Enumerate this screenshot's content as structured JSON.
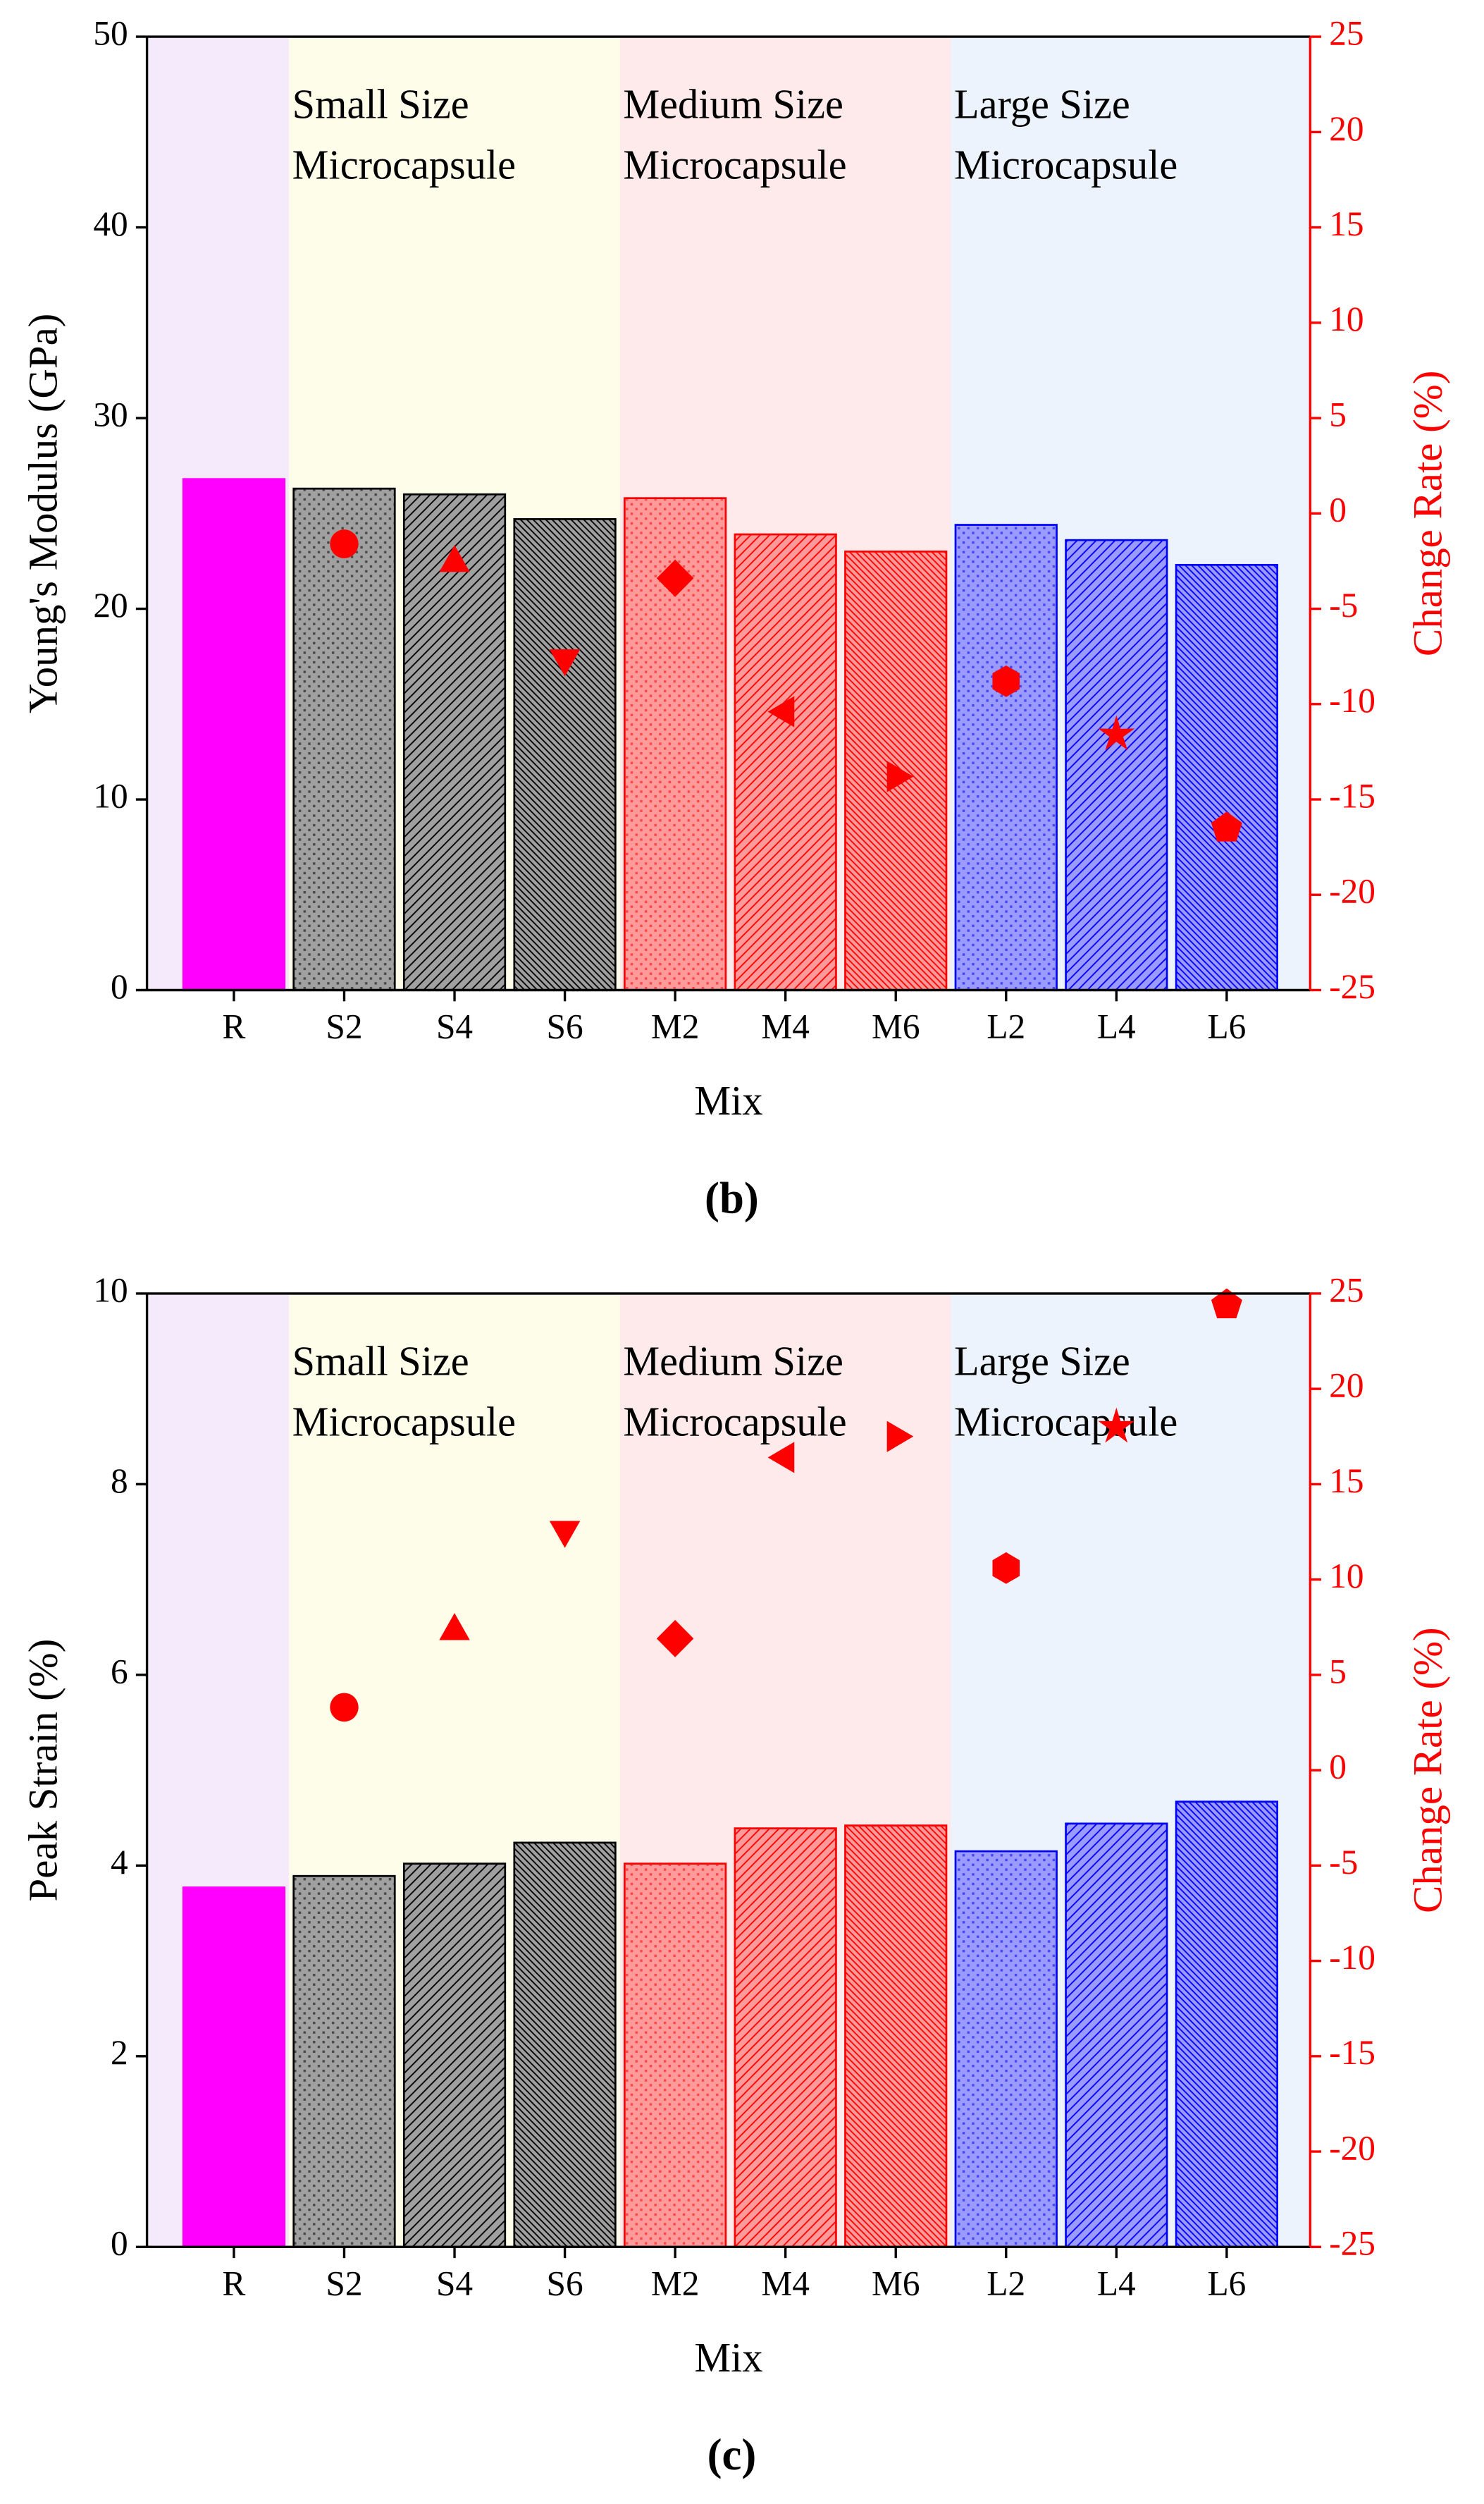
{
  "chart_data": [
    {
      "type": "bar",
      "caption": "(b)",
      "xlabel": "Mix",
      "ylabel": "Young's Modulus (GPa)",
      "y2label": "Change Rate (%)",
      "categories": [
        "R",
        "S2",
        "S4",
        "S6",
        "M2",
        "M4",
        "M6",
        "L2",
        "L4",
        "L6"
      ],
      "ylim": [
        0,
        50
      ],
      "yticks": [
        0,
        10,
        20,
        30,
        40,
        50
      ],
      "y2lim": [
        -25,
        25
      ],
      "y2ticks": [
        -25,
        -20,
        -15,
        -10,
        -5,
        0,
        5,
        10,
        15,
        20,
        25
      ],
      "y2color": "#ff0000",
      "regions": [
        {
          "span": [
            0,
            0
          ],
          "color": "#f5eafb"
        },
        {
          "span": [
            1,
            3
          ],
          "color": "#fefde9",
          "label_lines": [
            "Small Size",
            "Microcapsule"
          ]
        },
        {
          "span": [
            4,
            6
          ],
          "color": "#feeaea",
          "label_lines": [
            "Medium Size",
            "Microcapsule"
          ]
        },
        {
          "span": [
            7,
            9
          ],
          "color": "#ecf3fd",
          "label_lines": [
            "Large Size",
            "Microcapsule"
          ]
        }
      ],
      "series": [
        {
          "type": "bar",
          "values": [
            26.8,
            26.3,
            26.0,
            24.7,
            25.8,
            23.9,
            23.0,
            24.4,
            23.6,
            22.3
          ],
          "colors": [
            "#ff00ff",
            "#a0a0a0",
            "#a0a0a0",
            "#a0a0a0",
            "#ff9a9a",
            "#ff9a9a",
            "#ff9a9a",
            "#9a9aff",
            "#9a9aff",
            "#9a9aff"
          ],
          "edge_colors": [
            "#ff00ff",
            "#000000",
            "#000000",
            "#000000",
            "#ff0000",
            "#ff0000",
            "#ff0000",
            "#0000ff",
            "#0000ff",
            "#0000ff"
          ],
          "patterns": [
            "solid",
            "dots",
            "diag-right",
            "diag-left",
            "dots",
            "diag-right",
            "diag-left",
            "dots",
            "diag-right",
            "diag-left"
          ]
        },
        {
          "type": "scatter",
          "axis": "y2",
          "color": "#ff0000",
          "values": [
            null,
            -1.6,
            -2.6,
            -7.6,
            -3.4,
            -10.4,
            -13.8,
            -8.8,
            -11.6,
            -16.5
          ],
          "markers": [
            null,
            "circle",
            "triangle-up",
            "triangle-down",
            "diamond",
            "triangle-left",
            "triangle-right",
            "hexagon",
            "star",
            "pentagon"
          ]
        }
      ]
    },
    {
      "type": "bar",
      "caption": "(c)",
      "xlabel": "Mix",
      "ylabel": "Peak Strain (%)",
      "y2label": "Change Rate (%)",
      "categories": [
        "R",
        "S2",
        "S4",
        "S6",
        "M2",
        "M4",
        "M6",
        "L2",
        "L4",
        "L6"
      ],
      "ylim": [
        0,
        10
      ],
      "yticks": [
        0,
        2,
        4,
        6,
        8,
        10
      ],
      "y2lim": [
        -25,
        25
      ],
      "y2ticks": [
        -25,
        -20,
        -15,
        -10,
        -5,
        0,
        5,
        10,
        15,
        20,
        25
      ],
      "y2color": "#ff0000",
      "regions": [
        {
          "span": [
            0,
            0
          ],
          "color": "#f5eafb"
        },
        {
          "span": [
            1,
            3
          ],
          "color": "#fefde9",
          "label_lines": [
            "Small Size",
            "Microcapsule"
          ]
        },
        {
          "span": [
            4,
            6
          ],
          "color": "#feeaea",
          "label_lines": [
            "Medium Size",
            "Microcapsule"
          ]
        },
        {
          "span": [
            7,
            9
          ],
          "color": "#ecf3fd",
          "label_lines": [
            "Large Size",
            "Microcapsule"
          ]
        }
      ],
      "series": [
        {
          "type": "bar",
          "values": [
            3.77,
            3.89,
            4.02,
            4.24,
            4.02,
            4.39,
            4.42,
            4.15,
            4.44,
            4.67
          ],
          "colors": [
            "#ff00ff",
            "#a0a0a0",
            "#a0a0a0",
            "#a0a0a0",
            "#ff9a9a",
            "#ff9a9a",
            "#ff9a9a",
            "#9a9aff",
            "#9a9aff",
            "#9a9aff"
          ],
          "edge_colors": [
            "#ff00ff",
            "#000000",
            "#000000",
            "#000000",
            "#ff0000",
            "#ff0000",
            "#ff0000",
            "#0000ff",
            "#0000ff",
            "#0000ff"
          ],
          "patterns": [
            "solid",
            "dots",
            "diag-right",
            "diag-left",
            "dots",
            "diag-right",
            "diag-left",
            "dots",
            "diag-right",
            "diag-left"
          ]
        },
        {
          "type": "scatter",
          "axis": "y2",
          "color": "#ff0000",
          "values": [
            null,
            3.3,
            7.3,
            12.6,
            6.9,
            16.4,
            17.5,
            10.6,
            18.0,
            24.4
          ],
          "markers": [
            null,
            "circle",
            "triangle-up",
            "triangle-down",
            "diamond",
            "triangle-left",
            "triangle-right",
            "hexagon",
            "star",
            "pentagon"
          ]
        }
      ]
    }
  ]
}
